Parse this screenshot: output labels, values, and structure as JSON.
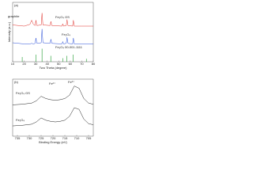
{
  "chart_data": [
    {
      "type": "line",
      "panel_label": "(a)",
      "x_label": "Two Theta (degree)",
      "y_label": "Intensity (a.u.)",
      "xlim": [
        10,
        80
      ],
      "xticks": [
        10,
        20,
        30,
        40,
        50,
        60,
        70,
        80
      ],
      "ylim": [
        0,
        100
      ],
      "annotations": [
        "graphite"
      ],
      "series": [
        {
          "name": "Fe₃O₄ GS",
          "color": "#e0302a",
          "style": "line",
          "x": [
            10,
            20,
            25,
            26.5,
            28,
            29.5,
            30.2,
            31,
            34.8,
            35.5,
            36.3,
            42.5,
            43.2,
            44,
            52.8,
            53.5,
            54.2,
            56.5,
            57.2,
            58,
            62,
            62.7,
            63.4,
            70,
            80
          ],
          "values": [
            62,
            60,
            63,
            70,
            63,
            61,
            70,
            61,
            62,
            82,
            62,
            61,
            68,
            61,
            60,
            64,
            60,
            61,
            71,
            61,
            60,
            70,
            60,
            60,
            60
          ]
        },
        {
          "name": "Fe₃O₄",
          "color": "#2a4fd8",
          "style": "line",
          "x": [
            10,
            20,
            25,
            26.5,
            28,
            29.5,
            30.2,
            31,
            34.8,
            35.5,
            36.3,
            42.5,
            43.2,
            44,
            52.8,
            53.5,
            54.2,
            56.5,
            57.2,
            58,
            62,
            62.7,
            63.4,
            70,
            80
          ],
          "values": [
            32,
            30,
            30,
            31,
            30,
            31,
            40,
            31,
            32,
            55,
            32,
            31,
            38,
            31,
            30,
            34,
            30,
            31,
            41,
            31,
            30,
            40,
            30,
            30,
            30
          ]
        },
        {
          "name": "Fe₃O₄ 00-001-1111",
          "color": "#1a9a2a",
          "style": "stem",
          "x": [
            18.3,
            30.1,
            35.5,
            43.1,
            53.5,
            57,
            62.6,
            74
          ],
          "values": [
            8,
            12,
            22,
            10,
            6,
            10,
            12,
            5
          ]
        }
      ]
    },
    {
      "type": "line",
      "panel_label": "(b)",
      "x_label": "Binding Energy (eV)",
      "xlim": [
        737,
        703
      ],
      "xticks": [
        735,
        730,
        725,
        720,
        715,
        710,
        705
      ],
      "ylim": [
        0,
        100
      ],
      "annotations": [
        "Fe²⁺",
        "Fe³⁺"
      ],
      "series": [
        {
          "name": "Fe₃O₄ GS",
          "color": "#222222",
          "style": "line",
          "x": [
            737,
            733,
            729,
            727,
            725,
            723,
            721,
            719,
            717,
            715,
            713,
            711,
            709,
            707,
            705,
            703
          ],
          "values": [
            55,
            56,
            58,
            62,
            70,
            66,
            64,
            63,
            64,
            66,
            72,
            88,
            84,
            66,
            58,
            56
          ]
        },
        {
          "name": "Fe₃O₄",
          "color": "#222222",
          "style": "line",
          "x": [
            737,
            733,
            729,
            727,
            725,
            723,
            721,
            719,
            717,
            715,
            713,
            711,
            709,
            707,
            705,
            703
          ],
          "values": [
            18,
            19,
            21,
            25,
            32,
            28,
            26,
            25,
            26,
            28,
            35,
            50,
            47,
            30,
            22,
            20
          ]
        }
      ]
    }
  ]
}
